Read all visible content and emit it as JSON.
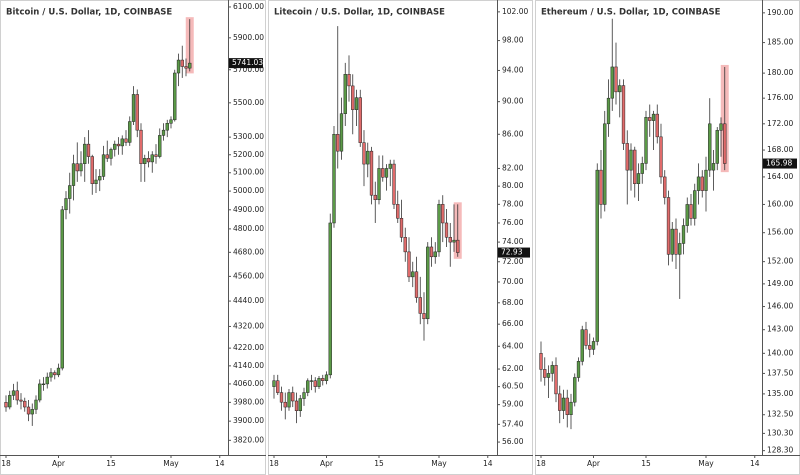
{
  "chart_data": [
    {
      "type": "candlestick",
      "title": "Bitcoin / U.S. Dollar, 1D, COINBASE",
      "log_scale": true,
      "up_color": "#5b9a47",
      "down_color": "#e06b6b",
      "highlight_color": "#f2a9a9",
      "categories": [
        "18",
        null,
        null,
        null,
        null,
        null,
        null,
        null,
        null,
        null,
        null,
        null,
        null,
        null,
        "Apr",
        null,
        null,
        null,
        null,
        null,
        null,
        null,
        null,
        null,
        null,
        null,
        null,
        null,
        "15",
        null,
        null,
        null,
        null,
        null,
        null,
        null,
        null,
        null,
        null,
        null,
        null,
        null,
        null,
        null,
        "May",
        null,
        null,
        null,
        null,
        null,
        null,
        null,
        null,
        null,
        null,
        null,
        null,
        "14"
      ],
      "open": [
        3980,
        3960,
        4010,
        4030,
        3990,
        3985,
        3960,
        3930,
        3950,
        3990,
        4060,
        4060,
        4090,
        4110,
        4100,
        4130,
        4900,
        4960,
        5030,
        5150,
        5110,
        5150,
        5260,
        5190,
        5040,
        5060,
        5080,
        5200,
        5180,
        5230,
        5260,
        5250,
        5290,
        5270,
        5390,
        5550,
        5340,
        5150,
        5180,
        5160,
        5200,
        5190,
        5310,
        5340,
        5380,
        5400,
        5680,
        5760,
        5720,
        5710,
        null,
        null,
        null,
        null,
        null,
        null,
        null,
        null
      ],
      "high": [
        4010,
        4030,
        4060,
        4070,
        4020,
        4000,
        3990,
        3975,
        4010,
        4080,
        4090,
        4110,
        4130,
        4120,
        4150,
        4920,
        5000,
        5100,
        5200,
        5270,
        5220,
        5300,
        5340,
        5200,
        5120,
        5120,
        5250,
        5280,
        5240,
        5280,
        5300,
        5310,
        5340,
        5420,
        5600,
        5580,
        5380,
        5200,
        5220,
        5220,
        5260,
        5350,
        5380,
        5400,
        5420,
        5700,
        5800,
        5850,
        5770,
        6020,
        null,
        null,
        null,
        null,
        null,
        null,
        null,
        null
      ],
      "low": [
        3940,
        3950,
        3990,
        3970,
        3950,
        3940,
        3900,
        3880,
        3930,
        3980,
        4030,
        4040,
        4070,
        4080,
        4090,
        4120,
        4850,
        4880,
        4950,
        5050,
        5080,
        5050,
        5150,
        4980,
        4990,
        5000,
        5060,
        5160,
        5140,
        5190,
        5200,
        5200,
        5250,
        5250,
        5370,
        5300,
        5050,
        5050,
        5130,
        5100,
        5150,
        5180,
        5280,
        5300,
        5350,
        5390,
        5600,
        5650,
        5660,
        5690,
        null,
        null,
        null,
        null,
        null,
        null,
        null,
        null
      ],
      "close": [
        3960,
        4010,
        4030,
        3990,
        3985,
        3960,
        3930,
        3950,
        3990,
        4060,
        4060,
        4090,
        4110,
        4100,
        4130,
        4900,
        4960,
        5030,
        5150,
        5110,
        5150,
        5260,
        5190,
        5040,
        5060,
        5080,
        5200,
        5180,
        5230,
        5260,
        5250,
        5290,
        5270,
        5390,
        5550,
        5340,
        5150,
        5180,
        5160,
        5200,
        5190,
        5310,
        5340,
        5380,
        5400,
        5680,
        5760,
        5720,
        5710,
        5741.03,
        null,
        null,
        null,
        null,
        null,
        null,
        null,
        null
      ],
      "last_price": 5741.03,
      "ylim": [
        3760,
        6146
      ],
      "yticks": [
        {
          "value": 6100,
          "label": "6100.00"
        },
        {
          "value": 5900,
          "label": "5900.00"
        },
        {
          "value": 5700,
          "label": "5700.00"
        },
        {
          "value": 5500,
          "label": "5500.00"
        },
        {
          "value": 5300,
          "label": "5300.00"
        },
        {
          "value": 5200,
          "label": "5200.00"
        },
        {
          "value": 5100,
          "label": "5100.00"
        },
        {
          "value": 5000,
          "label": "5000.00"
        },
        {
          "value": 4900,
          "label": "4900.00"
        },
        {
          "value": 4800,
          "label": "4800.00"
        },
        {
          "value": 4680,
          "label": "4680.00"
        },
        {
          "value": 4560,
          "label": "4560.00"
        },
        {
          "value": 4440,
          "label": "4440.00"
        },
        {
          "value": 4320,
          "label": "4320.00"
        },
        {
          "value": 4220,
          "label": "4220.00"
        },
        {
          "value": 4140,
          "label": "4140.00"
        },
        {
          "value": 4060,
          "label": "4060.00"
        },
        {
          "value": 3980,
          "label": "3980.00"
        },
        {
          "value": 3900,
          "label": "3900.00"
        },
        {
          "value": 3820,
          "label": "3820.00"
        }
      ]
    },
    {
      "type": "candlestick",
      "title": "Litecoin / U.S. Dollar, 1D, COINBASE",
      "log_scale": true,
      "up_color": "#5b9a47",
      "down_color": "#e06b6b",
      "highlight_color": "#f2a9a9",
      "categories": [
        "18",
        null,
        null,
        null,
        null,
        null,
        null,
        null,
        null,
        null,
        null,
        null,
        null,
        null,
        "Apr",
        null,
        null,
        null,
        null,
        null,
        null,
        null,
        null,
        null,
        null,
        null,
        null,
        null,
        "15",
        null,
        null,
        null,
        null,
        null,
        null,
        null,
        null,
        null,
        null,
        null,
        null,
        null,
        null,
        null,
        "May",
        null,
        null,
        null,
        null,
        null,
        null,
        null,
        null,
        null,
        null,
        null,
        null,
        "14"
      ],
      "open": [
        60.5,
        61.0,
        60.0,
        59.2,
        58.8,
        60.0,
        59.3,
        58.5,
        59.5,
        60.0,
        61.0,
        61.0,
        60.5,
        61.2,
        61.0,
        61.5,
        76.0,
        86.0,
        84.0,
        88.5,
        93.5,
        92.0,
        89.0,
        90.5,
        85.0,
        82.5,
        84.0,
        79.0,
        78.5,
        82.0,
        81.0,
        82.0,
        82.5,
        78.0,
        76.5,
        74.5,
        73.0,
        70.5,
        71.0,
        68.5,
        67.0,
        66.5,
        73.5,
        72.5,
        73.0,
        78.0,
        76.0,
        74.5,
        74.0,
        74.2,
        null,
        null,
        null,
        null,
        null,
        null,
        null,
        null
      ],
      "high": [
        61.5,
        61.5,
        60.5,
        60.0,
        60.3,
        60.5,
        60.0,
        59.8,
        60.4,
        61.2,
        61.5,
        61.3,
        61.4,
        61.5,
        61.8,
        77.0,
        87.0,
        100.0,
        90.5,
        95.0,
        96.0,
        93.5,
        91.5,
        91.5,
        86.5,
        85.0,
        84.5,
        80.5,
        83.5,
        83.5,
        82.5,
        83.0,
        83.0,
        79.5,
        78.5,
        75.5,
        74.5,
        72.0,
        72.5,
        70.5,
        69.0,
        74.0,
        74.5,
        74.0,
        78.5,
        79.0,
        77.5,
        76.0,
        78.0,
        78.0,
        null,
        null,
        null,
        null,
        null,
        null,
        null,
        null
      ],
      "low": [
        59.5,
        59.8,
        58.5,
        57.8,
        58.5,
        58.8,
        57.5,
        58.0,
        58.9,
        59.7,
        60.2,
        60.0,
        60.3,
        60.6,
        60.7,
        61.2,
        75.5,
        82.0,
        83.0,
        87.0,
        90.0,
        86.0,
        87.0,
        84.5,
        80.0,
        81.0,
        78.0,
        76.0,
        78.0,
        80.5,
        79.5,
        80.0,
        77.5,
        76.0,
        74.0,
        72.0,
        70.0,
        69.5,
        68.0,
        66.0,
        64.5,
        66.0,
        71.5,
        71.8,
        72.5,
        74.0,
        73.5,
        71.5,
        73.0,
        72.5,
        null,
        null,
        null,
        null,
        null,
        null,
        null,
        null
      ],
      "close": [
        61.0,
        60.0,
        59.2,
        58.8,
        60.0,
        59.3,
        58.5,
        59.5,
        60.0,
        61.0,
        61.0,
        60.5,
        61.2,
        61.0,
        61.5,
        76.0,
        86.0,
        84.0,
        88.5,
        93.5,
        92.0,
        89.0,
        90.5,
        85.0,
        82.5,
        84.0,
        79.0,
        78.5,
        82.0,
        81.0,
        82.0,
        82.5,
        78.0,
        76.5,
        74.5,
        73.0,
        70.5,
        71.0,
        68.5,
        67.0,
        66.5,
        73.5,
        72.5,
        73.0,
        78.0,
        76.0,
        74.5,
        74.0,
        74.2,
        72.93,
        null,
        null,
        null,
        null,
        null,
        null,
        null,
        null
      ],
      "last_price": 72.93,
      "ylim": [
        55.0,
        103.7
      ],
      "yticks": [
        {
          "value": 102,
          "label": "102.00"
        },
        {
          "value": 98,
          "label": "98.00"
        },
        {
          "value": 94,
          "label": "94.00"
        },
        {
          "value": 90,
          "label": "90.00"
        },
        {
          "value": 86,
          "label": "86.00"
        },
        {
          "value": 82,
          "label": "82.00"
        },
        {
          "value": 80,
          "label": "80.00"
        },
        {
          "value": 78,
          "label": "78.00"
        },
        {
          "value": 76,
          "label": "76.00"
        },
        {
          "value": 74,
          "label": "74.00"
        },
        {
          "value": 72,
          "label": "72.00"
        },
        {
          "value": 70,
          "label": "70.00"
        },
        {
          "value": 68,
          "label": "68.00"
        },
        {
          "value": 66,
          "label": "66.00"
        },
        {
          "value": 64,
          "label": "64.00"
        },
        {
          "value": 62,
          "label": "62.00"
        },
        {
          "value": 60.5,
          "label": "60.50"
        },
        {
          "value": 59,
          "label": "59.00"
        },
        {
          "value": 57.4,
          "label": "57.40"
        },
        {
          "value": 56,
          "label": "56.00"
        }
      ]
    },
    {
      "type": "candlestick",
      "title": "Ethereum / U.S. Dollar, 1D, COINBASE",
      "log_scale": true,
      "up_color": "#5b9a47",
      "down_color": "#e06b6b",
      "highlight_color": "#f2a9a9",
      "categories": [
        "18",
        null,
        null,
        null,
        null,
        null,
        null,
        null,
        null,
        null,
        null,
        null,
        null,
        null,
        "Apr",
        null,
        null,
        null,
        null,
        null,
        null,
        null,
        null,
        null,
        null,
        null,
        null,
        null,
        "15",
        null,
        null,
        null,
        null,
        null,
        null,
        null,
        null,
        null,
        null,
        null,
        null,
        null,
        null,
        null,
        "May",
        null,
        null,
        null,
        null,
        null,
        null,
        null,
        null,
        null,
        null,
        null,
        null,
        "14"
      ],
      "open": [
        140.0,
        138.0,
        137.0,
        137.5,
        138.5,
        135.0,
        133.0,
        134.5,
        132.5,
        134.0,
        137.0,
        139.0,
        143.0,
        141.0,
        140.5,
        141.5,
        165.0,
        160.0,
        172.0,
        176.0,
        181.0,
        177.0,
        178.0,
        169.0,
        165.0,
        168.0,
        163.0,
        164.5,
        166.0,
        173.0,
        172.5,
        173.5,
        170.0,
        164.0,
        161.0,
        153.0,
        156.5,
        153.0,
        154.5,
        157.0,
        160.0,
        158.0,
        162.0,
        164.0,
        162.0,
        165.0,
        165.0,
        166.0,
        171.0,
        172.0,
        null,
        null,
        null,
        null,
        null,
        null,
        null,
        null
      ],
      "high": [
        141.5,
        139.5,
        138.5,
        139.0,
        139.5,
        136.0,
        135.5,
        135.5,
        135.0,
        137.5,
        139.5,
        143.5,
        144.0,
        142.5,
        142.0,
        166.0,
        168.0,
        174.0,
        179.0,
        189.0,
        185.0,
        179.0,
        179.0,
        171.0,
        169.0,
        168.5,
        166.0,
        167.0,
        174.0,
        175.0,
        174.0,
        175.0,
        172.0,
        165.0,
        162.0,
        157.5,
        158.0,
        156.0,
        158.0,
        161.0,
        161.5,
        163.0,
        166.0,
        165.0,
        167.0,
        176.0,
        168.0,
        171.5,
        173.0,
        181.0,
        null,
        null,
        null,
        null,
        null,
        null,
        null,
        null
      ],
      "low": [
        136.5,
        136.0,
        134.5,
        136.5,
        134.0,
        131.5,
        132.0,
        131.0,
        130.8,
        133.5,
        136.5,
        138.5,
        140.5,
        139.5,
        139.8,
        141.0,
        158.0,
        159.0,
        170.0,
        174.0,
        175.0,
        173.0,
        168.0,
        160.0,
        162.0,
        161.0,
        160.5,
        163.0,
        165.0,
        170.0,
        168.0,
        169.0,
        163.0,
        160.0,
        151.5,
        152.0,
        151.0,
        147.0,
        153.0,
        156.0,
        157.0,
        157.0,
        160.0,
        161.0,
        159.0,
        164.0,
        162.0,
        165.0,
        167.0,
        165.0,
        null,
        null,
        null,
        null,
        null,
        null,
        null,
        null
      ],
      "close": [
        138.0,
        137.0,
        137.5,
        138.5,
        135.0,
        133.0,
        134.5,
        132.5,
        134.0,
        137.0,
        139.0,
        143.0,
        141.0,
        140.5,
        141.5,
        165.0,
        160.0,
        172.0,
        176.0,
        181.0,
        177.0,
        178.0,
        169.0,
        165.0,
        168.0,
        163.0,
        164.5,
        166.0,
        173.0,
        172.5,
        173.5,
        170.0,
        164.0,
        161.0,
        153.0,
        156.5,
        153.0,
        154.5,
        157.0,
        160.0,
        158.0,
        162.0,
        164.0,
        162.0,
        165.0,
        172.0,
        166.0,
        171.0,
        172.0,
        165.98,
        null,
        null,
        null,
        null,
        null,
        null,
        null,
        null
      ],
      "last_price": 165.98,
      "ylim": [
        127.8,
        192.2
      ],
      "yticks": [
        {
          "value": 190,
          "label": "190.00"
        },
        {
          "value": 185,
          "label": "185.00"
        },
        {
          "value": 180,
          "label": "180.00"
        },
        {
          "value": 176,
          "label": "176.00"
        },
        {
          "value": 172,
          "label": "172.00"
        },
        {
          "value": 168,
          "label": "168.00"
        },
        {
          "value": 164,
          "label": "164.00"
        },
        {
          "value": 160,
          "label": "160.00"
        },
        {
          "value": 156,
          "label": "156.00"
        },
        {
          "value": 152,
          "label": "152.00"
        },
        {
          "value": 149,
          "label": "149.00"
        },
        {
          "value": 146,
          "label": "146.00"
        },
        {
          "value": 143,
          "label": "143.00"
        },
        {
          "value": 140,
          "label": "140.00"
        },
        {
          "value": 137.5,
          "label": "137.50"
        },
        {
          "value": 135,
          "label": "135.00"
        },
        {
          "value": 132.5,
          "label": "132.50"
        },
        {
          "value": 130.3,
          "label": "130.30"
        },
        {
          "value": 128.3,
          "label": "128.30"
        }
      ]
    }
  ]
}
